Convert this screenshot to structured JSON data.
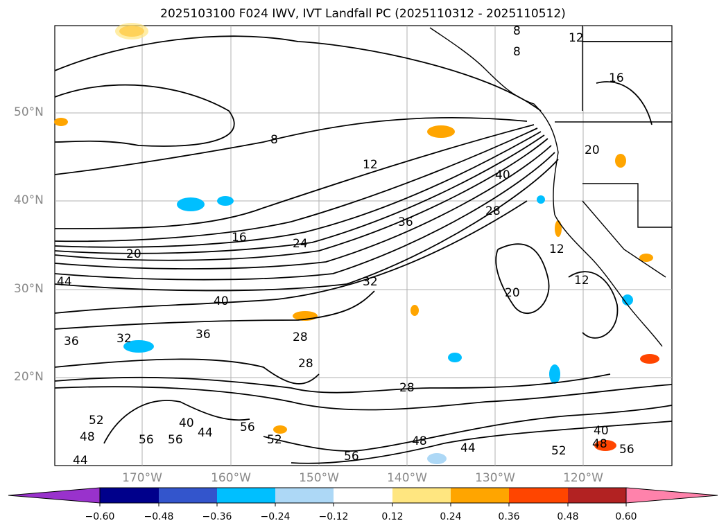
{
  "title": "2025103100 F024 IWV, IVT Landfall PC (2025110312 - 2025110512)",
  "map": {
    "lat_labels": [
      "50°N",
      "40°N",
      "30°N",
      "20°N"
    ],
    "lon_labels": [
      "170°W",
      "160°W",
      "150°W",
      "140°W",
      "130°W",
      "120°W"
    ],
    "contour_labels": [
      "8",
      "8",
      "8",
      "12",
      "12",
      "12",
      "12",
      "16",
      "16",
      "20",
      "20",
      "20",
      "24",
      "28",
      "28",
      "28",
      "28",
      "32",
      "32",
      "36",
      "36",
      "36",
      "40",
      "40",
      "40",
      "40",
      "44",
      "44",
      "44",
      "44",
      "48",
      "48",
      "48",
      "52",
      "52",
      "52",
      "56",
      "56",
      "56",
      "56",
      "56"
    ]
  },
  "colorbar": {
    "ticks": [
      "−0.60",
      "−0.48",
      "−0.36",
      "−0.24",
      "−0.12",
      "0.12",
      "0.24",
      "0.36",
      "0.48",
      "0.60"
    ],
    "colors": [
      "#9932cc",
      "#00008b",
      "#3355cc",
      "#00bfff",
      "#add8f6",
      "#ffffff",
      "#ffe680",
      "#ffa500",
      "#ff4500",
      "#b22222",
      "#ff82ab"
    ]
  }
}
